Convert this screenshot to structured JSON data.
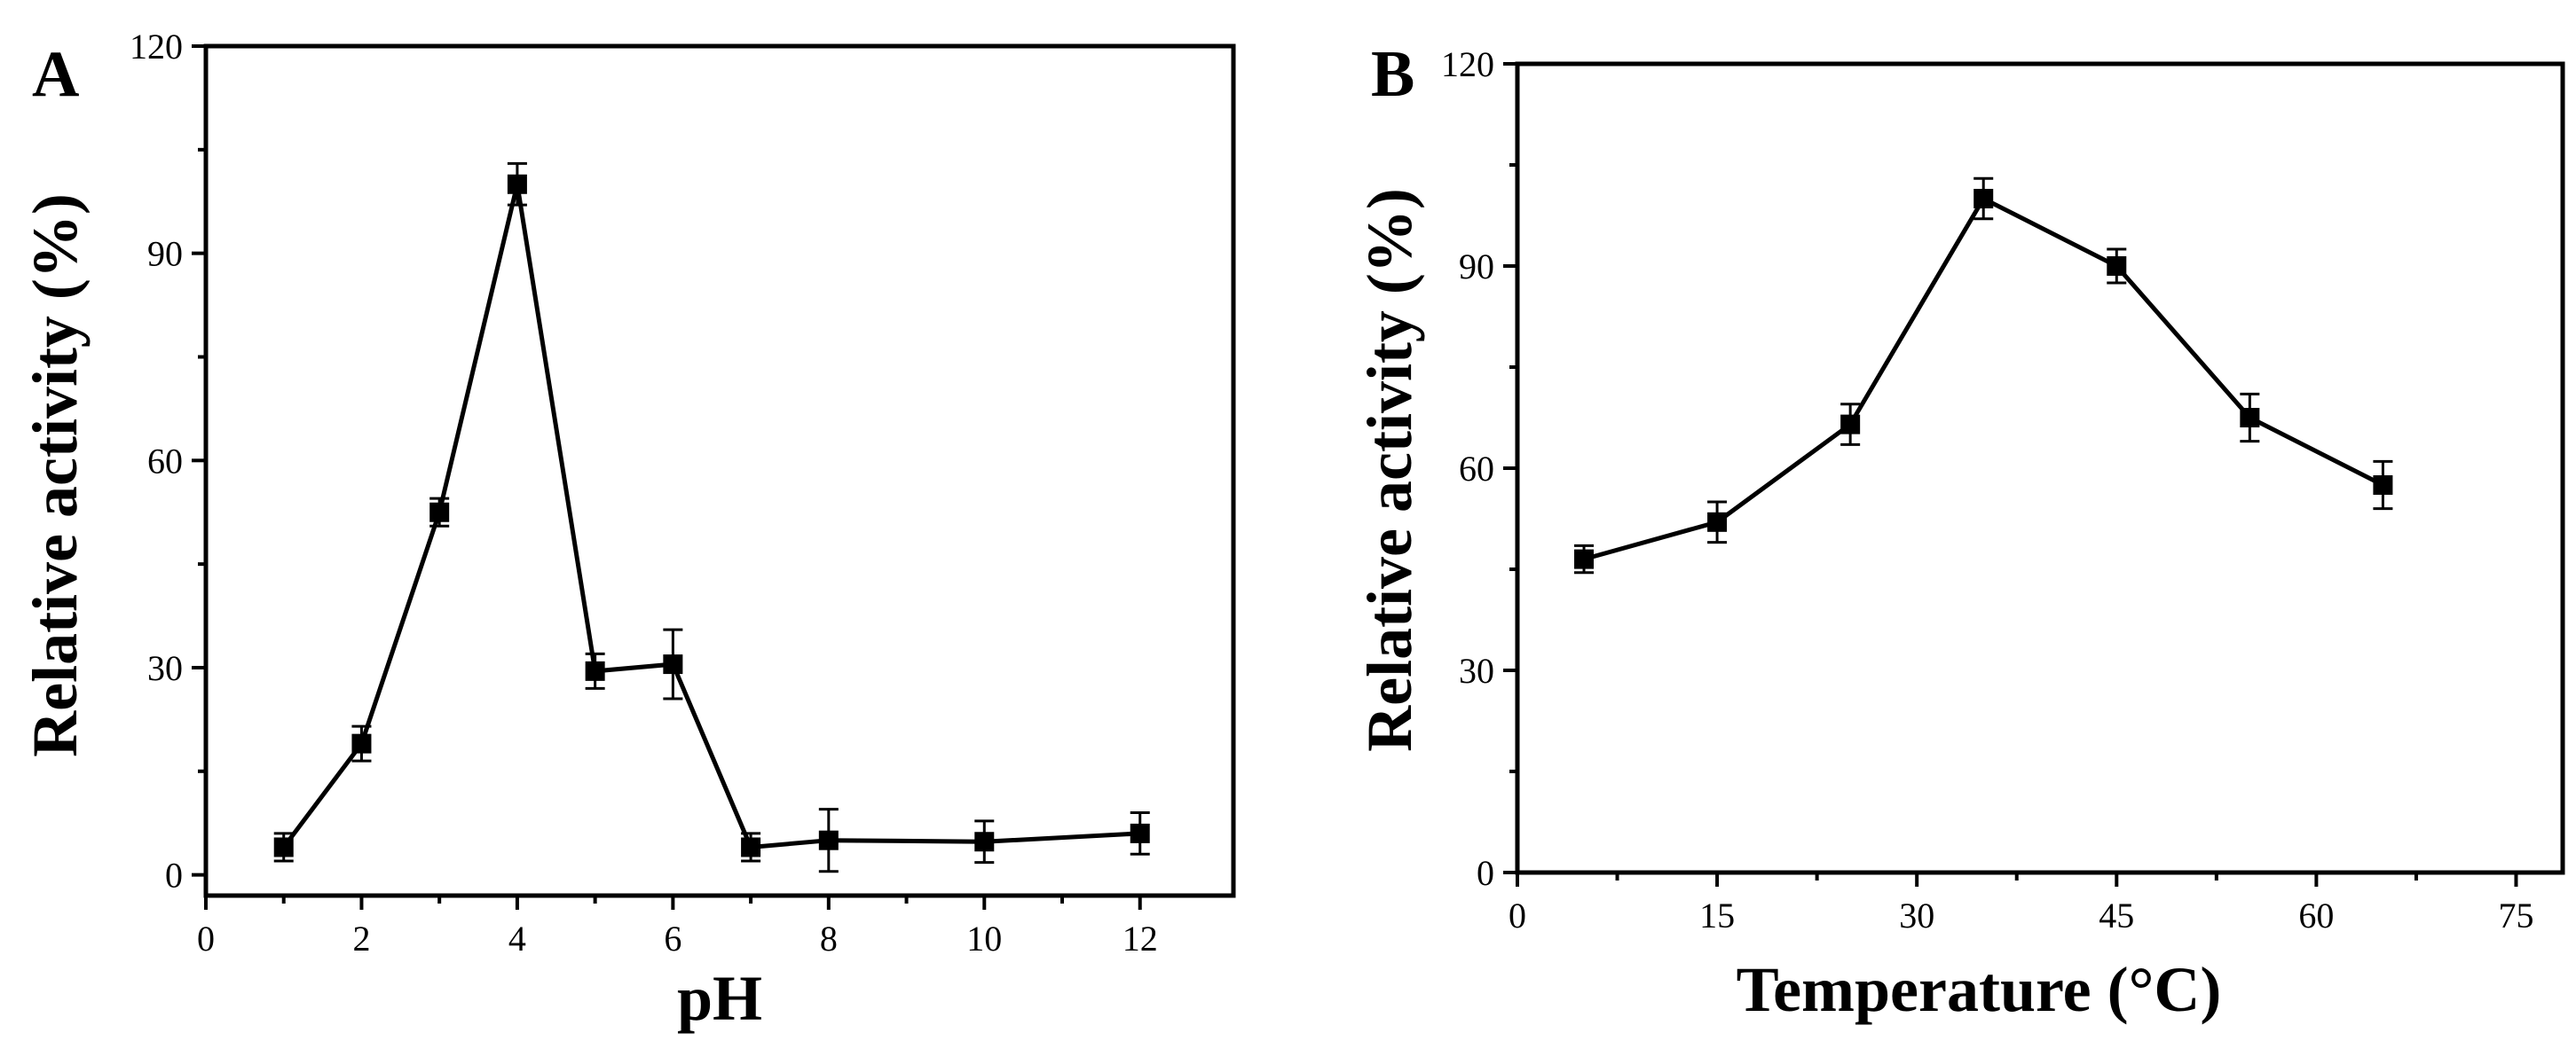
{
  "chart_data": [
    {
      "type": "line",
      "panel_label": "A",
      "title": "",
      "xlabel": "pH",
      "ylabel": "Relative activity (%)",
      "x_ticks": [
        0,
        2,
        4,
        6,
        8,
        10,
        12
      ],
      "y_ticks": [
        0,
        30,
        60,
        90,
        120
      ],
      "ylim": [
        0,
        120
      ],
      "grid": false,
      "x": [
        1,
        2,
        3,
        4,
        5,
        6,
        7,
        8,
        10,
        12
      ],
      "values": [
        4,
        19,
        52.5,
        100,
        29.5,
        30.5,
        4,
        5,
        4.8,
        6
      ],
      "errors": [
        2,
        2.5,
        2,
        3,
        2.5,
        5,
        2,
        4.5,
        3,
        3
      ]
    },
    {
      "type": "line",
      "panel_label": "B",
      "title": "",
      "xlabel": "Temperature (°C)",
      "ylabel": "Relative activity (%)",
      "x_ticks": [
        0,
        15,
        30,
        45,
        60,
        75
      ],
      "y_ticks": [
        0,
        30,
        60,
        90,
        120
      ],
      "xlim": [
        0,
        75
      ],
      "ylim": [
        0,
        120
      ],
      "grid": false,
      "x": [
        5,
        15,
        25,
        35,
        45,
        55,
        65
      ],
      "values": [
        46.5,
        52,
        66.5,
        100,
        90,
        67.5,
        57.5
      ],
      "errors": [
        2,
        3,
        3,
        3,
        2.5,
        3.5,
        3.5
      ]
    }
  ]
}
